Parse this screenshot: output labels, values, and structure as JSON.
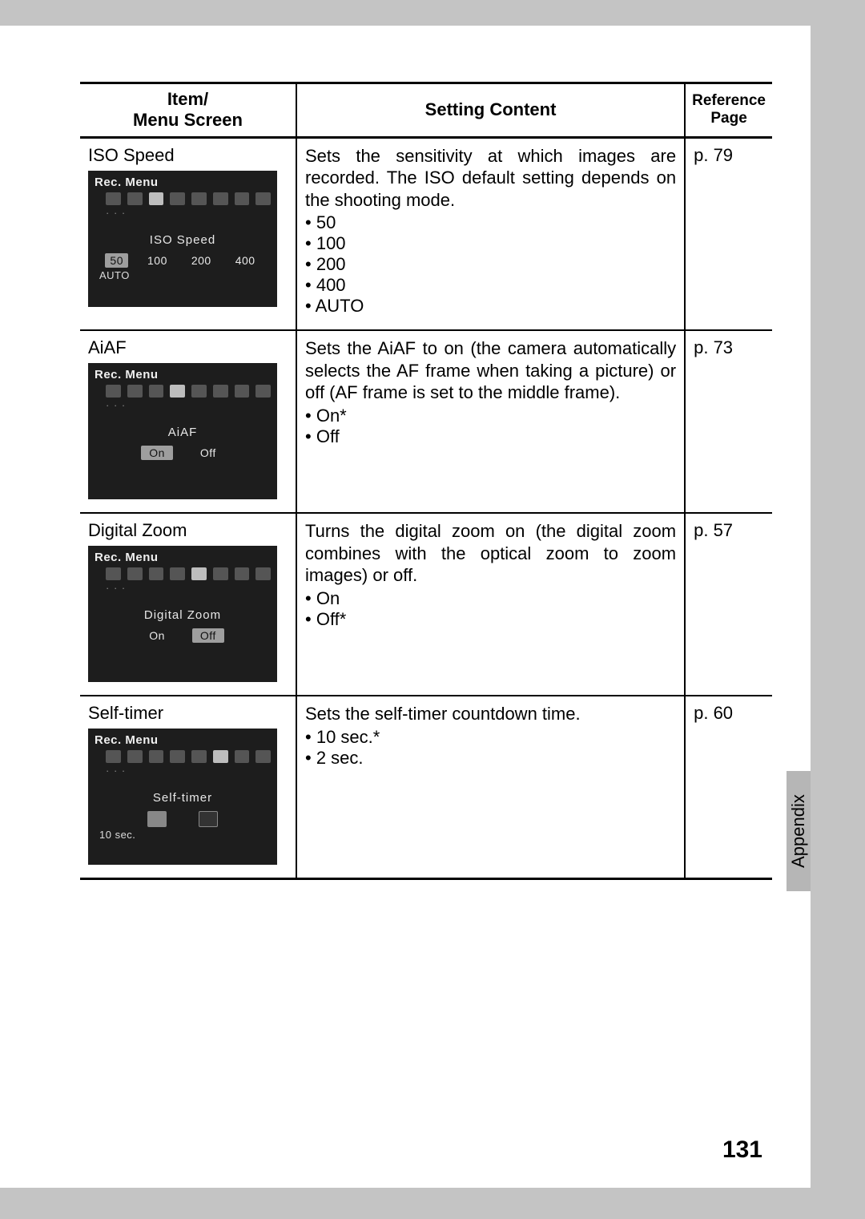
{
  "section_tab": "Appendix",
  "page_number": "131",
  "table": {
    "headers": {
      "item": "Item/\nMenu Screen",
      "content": "Setting Content",
      "reference": "Reference\nPage"
    },
    "rows": [
      {
        "item_title": "ISO Speed",
        "menu": {
          "title": "Rec. Menu",
          "label": "ISO Speed",
          "options": [
            "50",
            "100",
            "200",
            "400"
          ],
          "selected_index": 0,
          "footer": "AUTO"
        },
        "description": "Sets the sensitivity at which images are recorded. The ISO default setting depends on the shooting mode.",
        "bullets": [
          "50",
          "100",
          "200",
          "400",
          "AUTO"
        ],
        "reference": "p. 79"
      },
      {
        "item_title": "AiAF",
        "menu": {
          "title": "Rec. Menu",
          "label": "AiAF",
          "options": [
            "On",
            "Off"
          ],
          "selected_index": 0,
          "footer": ""
        },
        "description": "Sets the AiAF to on (the camera automatically selects the AF frame when taking a picture) or off (AF frame is set to the middle frame).",
        "bullets": [
          "On*",
          "Off"
        ],
        "reference": "p. 73"
      },
      {
        "item_title": "Digital Zoom",
        "menu": {
          "title": "Rec. Menu",
          "label": "Digital Zoom",
          "options": [
            "On",
            "Off"
          ],
          "selected_index": 1,
          "footer": ""
        },
        "description": "Turns the digital zoom on (the digital zoom combines with the optical zoom to zoom images) or off.",
        "bullets": [
          "On",
          "Off*"
        ],
        "reference": "p. 57"
      },
      {
        "item_title": "Self-timer",
        "menu": {
          "title": "Rec. Menu",
          "label": "Self-timer",
          "options": [
            "",
            ""
          ],
          "selected_index": 0,
          "footer": "10 sec."
        },
        "description": "Sets the self-timer countdown time.",
        "bullets": [
          "10 sec.*",
          "2 sec."
        ],
        "reference": "p. 60"
      }
    ]
  }
}
